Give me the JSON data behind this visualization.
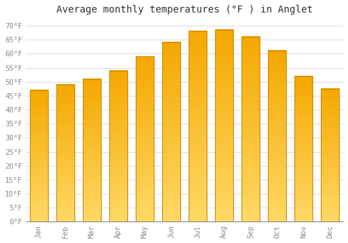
{
  "title": "Average monthly temperatures (°F ) in Anglet",
  "months": [
    "Jan",
    "Feb",
    "Mar",
    "Apr",
    "May",
    "Jun",
    "Jul",
    "Aug",
    "Sep",
    "Oct",
    "Nov",
    "Dec"
  ],
  "values": [
    47,
    49,
    51,
    54,
    59,
    64,
    68,
    68.5,
    66,
    61,
    52,
    47.5
  ],
  "bar_color_top": "#F5A800",
  "bar_color_bottom": "#FFD966",
  "bar_edge_color": "#CC8800",
  "background_color": "#FFFFFF",
  "grid_color": "#DDDDDD",
  "ylabel_ticks": [
    0,
    5,
    10,
    15,
    20,
    25,
    30,
    35,
    40,
    45,
    50,
    55,
    60,
    65,
    70
  ],
  "ylim": [
    0,
    72
  ],
  "title_fontsize": 10,
  "tick_fontsize": 7.5,
  "tick_color": "#888888",
  "font_family": "monospace"
}
